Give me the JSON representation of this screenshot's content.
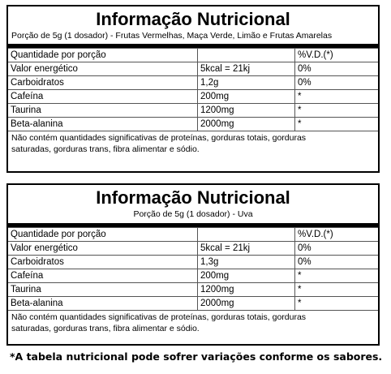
{
  "tables": [
    {
      "title": "Informação Nutricional",
      "subtitle": "Porção de 5g (1 dosador) - Frutas Vermelhas, Maça Verde, Limão e Frutas Amarelas",
      "header": [
        "Quantidade por porção",
        "",
        "%V.D.(*)"
      ],
      "rows": [
        [
          "Valor energético",
          "5kcal = 21kj",
          "0%"
        ],
        [
          "Carboidratos",
          "1,2g",
          "0%"
        ],
        [
          "Cafeína",
          "200mg",
          "*"
        ],
        [
          "Taurina",
          "1200mg",
          "*"
        ],
        [
          "Beta-alanina",
          "2000mg",
          "*"
        ]
      ],
      "note_line1": "Não contém quantidades significativas de proteínas, gorduras totais, gorduras",
      "note_line2": "saturadas, gorduras trans, fibra alimentar e sódio."
    },
    {
      "title": "Informação Nutricional",
      "subtitle": "Porção de 5g (1 dosador) - Uva",
      "header": [
        "Quantidade por porção",
        "",
        "%V.D.(*)"
      ],
      "rows": [
        [
          "Valor energético",
          "5kcal = 21kj",
          "0%"
        ],
        [
          "Carboidratos",
          "1,3g",
          "0%"
        ],
        [
          "Cafeína",
          "200mg",
          "*"
        ],
        [
          "Taurina",
          "1200mg",
          "*"
        ],
        [
          "Beta-alanina",
          "2000mg",
          "*"
        ]
      ],
      "note_line1": "Não contém quantidades significativas de proteínas, gorduras totais, gorduras",
      "note_line2": "saturadas, gorduras trans, fibra alimentar e sódio."
    }
  ],
  "footer": "*A tabela nutricional pode sofrer variações conforme os sabores."
}
